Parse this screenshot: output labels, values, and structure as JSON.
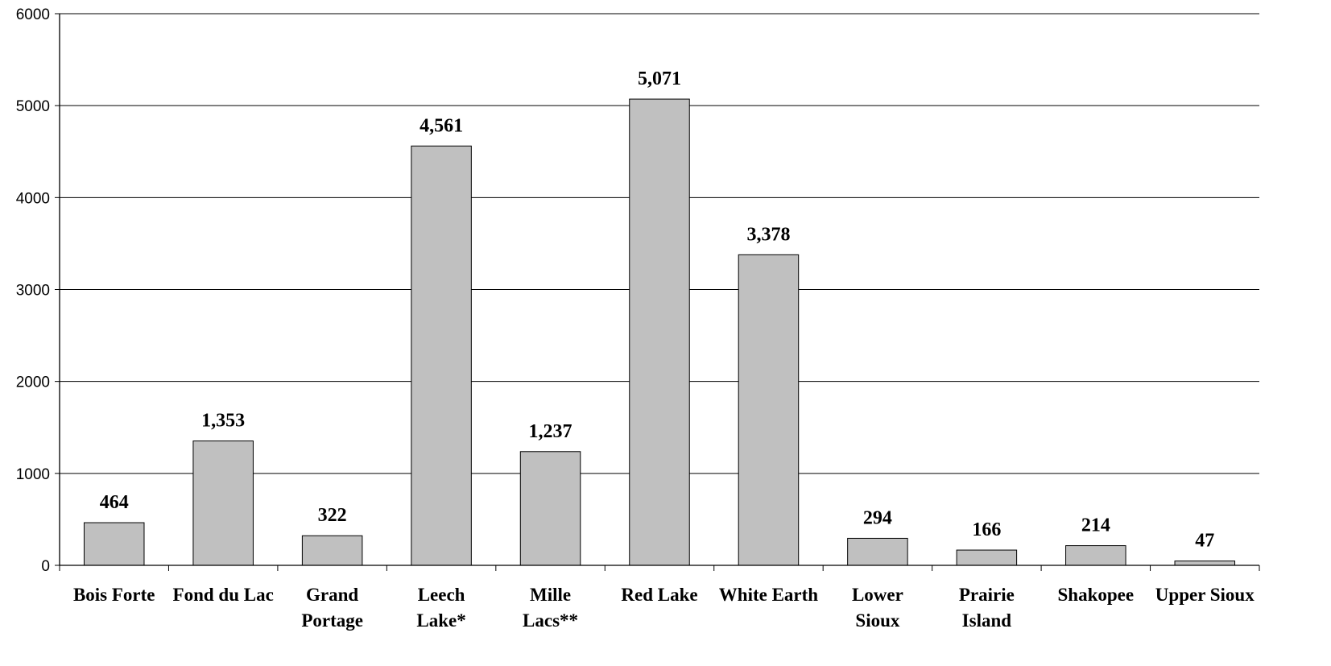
{
  "chart_data": {
    "type": "bar",
    "title": "",
    "xlabel": "",
    "ylabel": "",
    "categories": [
      [
        "Bois Forte"
      ],
      [
        "Fond du Lac"
      ],
      [
        "Grand",
        "Portage"
      ],
      [
        "Leech",
        "Lake*"
      ],
      [
        "Mille",
        "Lacs**"
      ],
      [
        "Red Lake"
      ],
      [
        "White Earth"
      ],
      [
        "Lower",
        "Sioux"
      ],
      [
        "Prairie",
        "Island"
      ],
      [
        "Shakopee"
      ],
      [
        "Upper Sioux"
      ]
    ],
    "values": [
      464,
      1353,
      322,
      4561,
      1237,
      5071,
      3378,
      294,
      166,
      214,
      47
    ],
    "value_labels": [
      "464",
      "1,353",
      "322",
      "4,561",
      "1,237",
      "5,071",
      "3,378",
      "294",
      "166",
      "214",
      "47"
    ],
    "ylim": [
      0,
      6000
    ],
    "yticks": [
      "0",
      "1000",
      "2000",
      "3000",
      "4000",
      "5000",
      "6000"
    ],
    "grid": true,
    "legend": "none",
    "colors": {
      "bar_fill": "#c0c0c0",
      "bar_stroke": "#000000",
      "grid": "#000000",
      "axis": "#000000"
    }
  }
}
